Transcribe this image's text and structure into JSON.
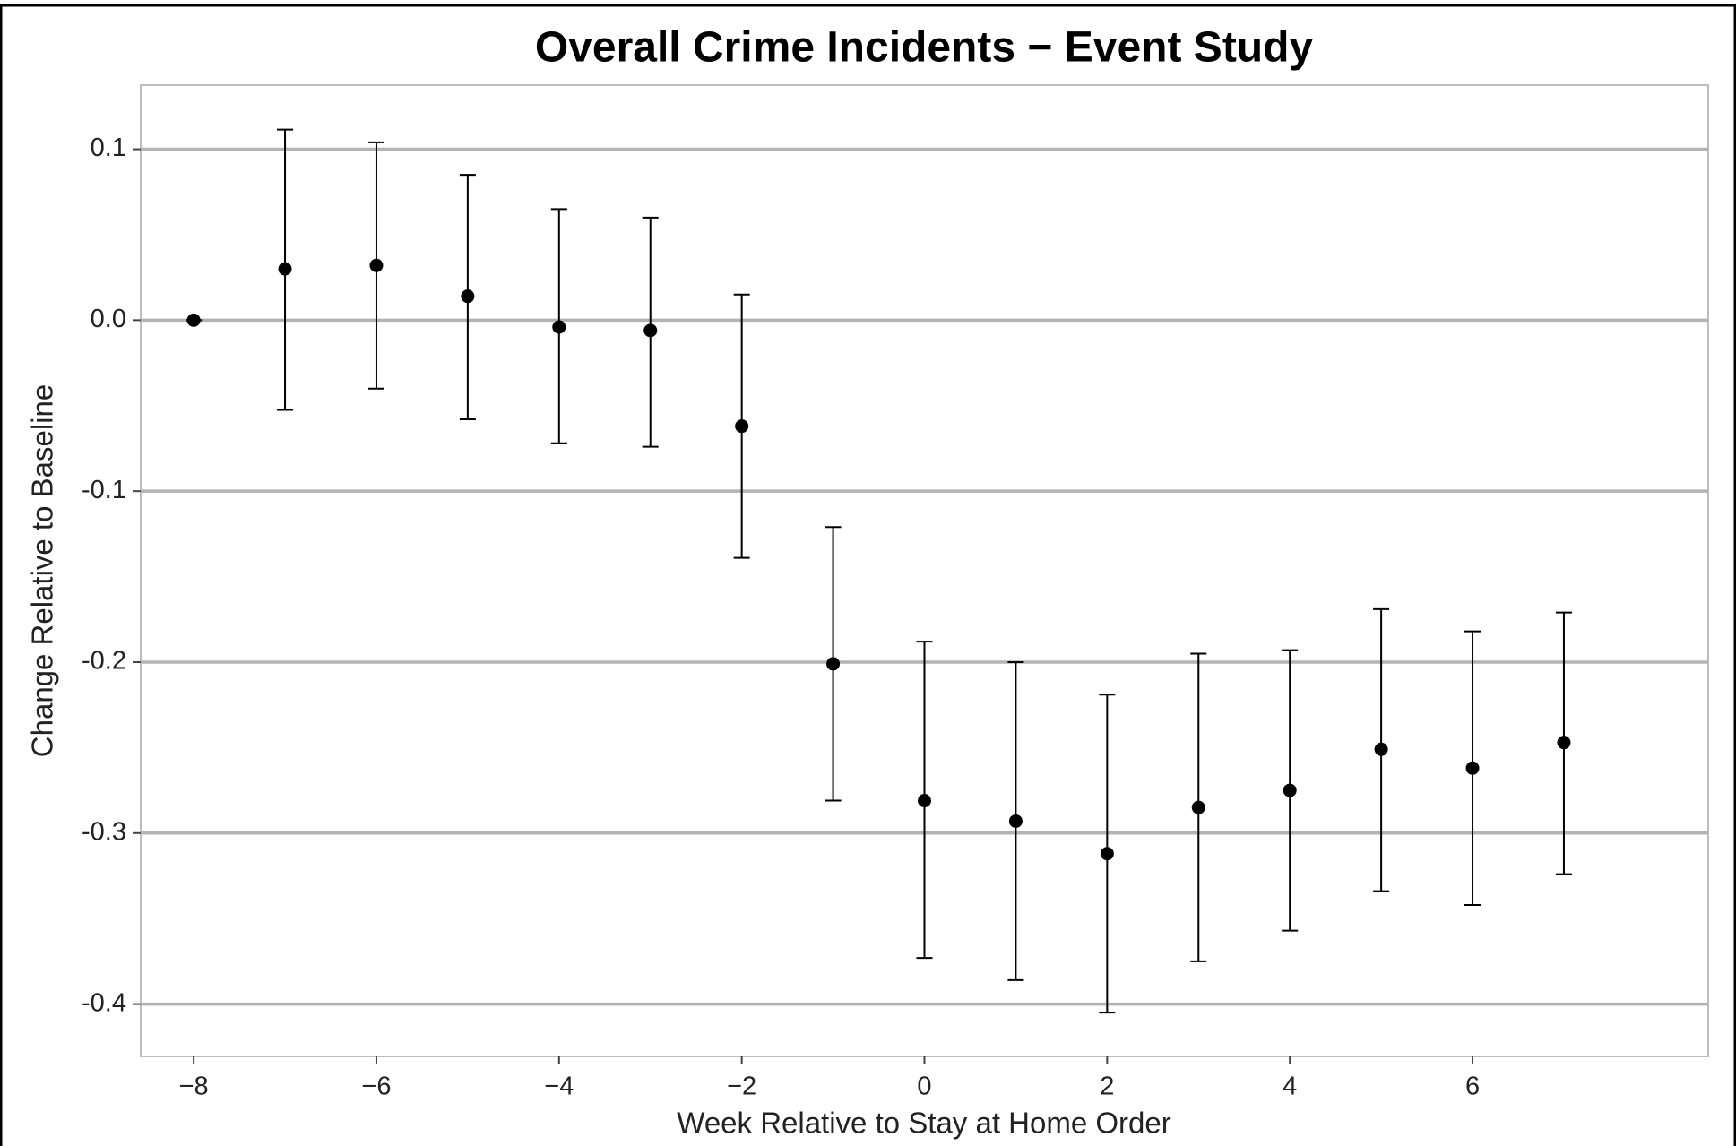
{
  "chart_data": {
    "type": "errorbar",
    "title": "Overall Crime Incidents − Event Study",
    "x_label": "Week Relative to Stay at Home Order",
    "y_label": "Change Relative to Baseline",
    "x": [
      -8,
      -7,
      -6,
      -5,
      -4,
      -3,
      -2,
      -1,
      0,
      1,
      2,
      3,
      4,
      5,
      6,
      7
    ],
    "series": [
      {
        "color": "#000000",
        "values": [
          0,
          0.03,
          0.032,
          0.014,
          -0.004,
          -0.006,
          -0.062,
          -0.201,
          -0.281,
          -0.293,
          -0.312,
          -0.285,
          -0.275,
          -0.251,
          -0.262,
          -0.247
        ],
        "lower": [
          0,
          -0.0525,
          -0.04,
          -0.058,
          -0.072,
          -0.074,
          -0.139,
          -0.281,
          -0.373,
          -0.386,
          -0.405,
          -0.375,
          -0.357,
          -0.334,
          -0.342,
          -0.324
        ],
        "upper": [
          0,
          0.1115,
          0.104,
          0.085,
          0.065,
          0.06,
          0.015,
          -0.121,
          -0.188,
          -0.2,
          -0.219,
          -0.195,
          -0.193,
          -0.169,
          -0.182,
          -0.171
        ]
      }
    ],
    "xlim": [
      -8.58,
      8.58
    ],
    "ylim": [
      -0.4306,
      0.1375
    ],
    "xticks": [
      {
        "value": -8,
        "label": "−8"
      },
      {
        "value": -6,
        "label": "−6"
      },
      {
        "value": -4,
        "label": "−4"
      },
      {
        "value": -2,
        "label": "−2"
      },
      0,
      2,
      4,
      6
    ],
    "yticks": [
      0.1,
      {
        "value": 0,
        "label": "0.0"
      },
      {
        "value": -0.1,
        "label": "-0.1"
      },
      {
        "value": -0.2,
        "label": "-0.2"
      },
      {
        "value": -0.3,
        "label": "-0.3"
      },
      {
        "value": -0.4,
        "label": "-0.4"
      }
    ],
    "grid": true
  }
}
